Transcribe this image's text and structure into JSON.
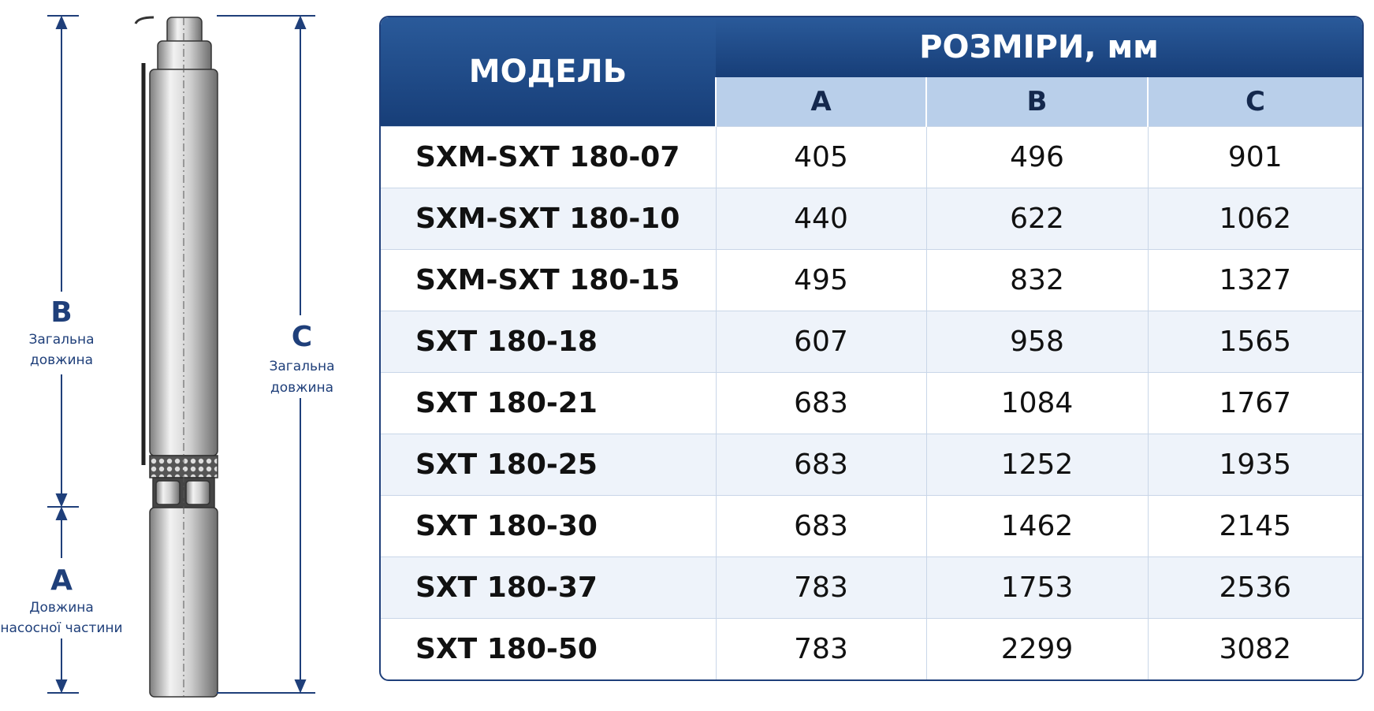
{
  "diagram": {
    "b": {
      "letter": "B",
      "text": [
        "Загальна",
        "довжина"
      ]
    },
    "c": {
      "letter": "C",
      "text": [
        "Загальна",
        "довжина"
      ]
    },
    "a": {
      "letter": "A",
      "text": [
        "Довжина",
        "насосної частини"
      ]
    }
  },
  "table": {
    "header": {
      "model": "МОДЕЛЬ",
      "sizes": "РОЗМІРИ, мм",
      "columns": [
        "A",
        "B",
        "C"
      ]
    },
    "rows": [
      [
        "SXM-SXT 180-07",
        405,
        496,
        901
      ],
      [
        "SXM-SXT 180-10",
        440,
        622,
        1062
      ],
      [
        "SXM-SXT 180-15",
        495,
        832,
        1327
      ],
      [
        "SXT 180-18",
        607,
        958,
        1565
      ],
      [
        "SXT 180-21",
        683,
        1084,
        1767
      ],
      [
        "SXT 180-25",
        683,
        1252,
        1935
      ],
      [
        "SXT 180-30",
        683,
        1462,
        2145
      ],
      [
        "SXT 180-37",
        783,
        1753,
        2536
      ],
      [
        "SXT 180-50",
        783,
        2299,
        3082
      ]
    ]
  }
}
